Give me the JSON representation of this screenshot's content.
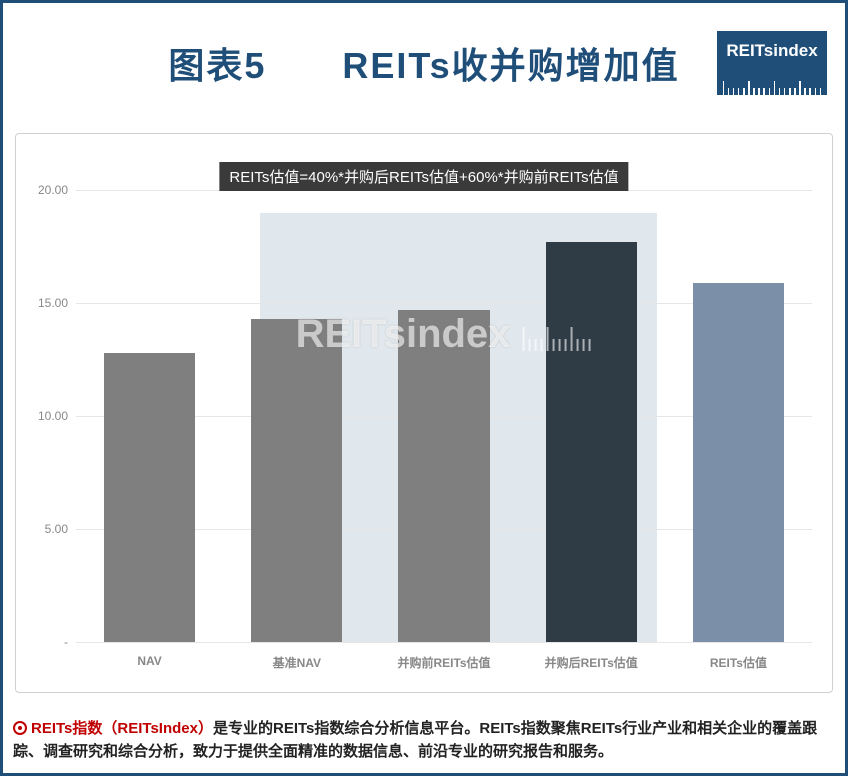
{
  "header": {
    "title": "图表5　　REITs收并购增加值",
    "logo_text": "REITsindex"
  },
  "chart": {
    "type": "bar",
    "formula_banner": "REITs估值=40%*并购后REITs估值+60%*并购前REITs估值",
    "ylim": [
      0,
      20
    ],
    "yticks": [
      {
        "v": 0,
        "label": "-"
      },
      {
        "v": 5,
        "label": "5.00"
      },
      {
        "v": 10,
        "label": "10.00"
      },
      {
        "v": 15,
        "label": "15.00"
      },
      {
        "v": 20,
        "label": "20.00"
      }
    ],
    "grid_color": "#e6e6e6",
    "background_color": "#ffffff",
    "background_band_color": "#bccbd7",
    "background_band_left_pct": 25,
    "background_band_width_pct": 54,
    "bar_width_pct": 62,
    "bars": [
      {
        "label": "NAV",
        "value": 12.8,
        "color": "#7f7f7f"
      },
      {
        "label": "基准NAV",
        "value": 14.3,
        "color": "#7f7f7f"
      },
      {
        "label": "并购前REITs估值",
        "value": 14.7,
        "color": "#7f7f7f"
      },
      {
        "label": "并购后REITs估值",
        "value": 17.7,
        "color": "#2f3b45"
      },
      {
        "label": "REITs估值",
        "value": 15.9,
        "color": "#7b8fa8"
      }
    ],
    "watermark_text": "REITsindex",
    "label_fontsize": 12,
    "title_fontsize": 36
  },
  "footer": {
    "prefix": "REITs指数（REITsIndex）",
    "body": "是专业的REITs指数综合分析信息平台。REITs指数聚焦REITs行业产业和相关企业的覆盖跟踪、调查研究和综合分析，致力于提供全面精准的数据信息、前沿专业的研究报告和服务。"
  }
}
